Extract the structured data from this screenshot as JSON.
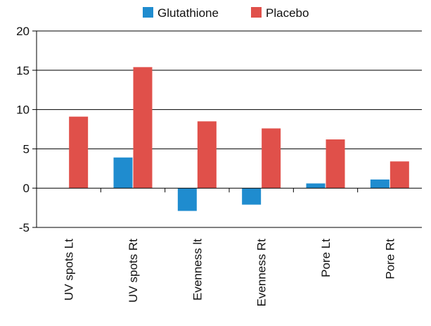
{
  "chart_data": {
    "type": "bar",
    "categories": [
      "UV spots Lt",
      "UV spots Rt",
      "Evenness lt",
      "Evenness Rt",
      "Pore Lt",
      "Pore Rt"
    ],
    "series": [
      {
        "name": "Glutathione",
        "color": "#1f8ccf",
        "values": [
          0,
          3.9,
          -2.9,
          -2.1,
          0.6,
          1.1
        ]
      },
      {
        "name": "Placebo",
        "color": "#e0504a",
        "values": [
          9.1,
          15.4,
          8.5,
          7.6,
          6.2,
          3.4
        ]
      }
    ],
    "y_ticks": [
      "20",
      "15",
      "10",
      "5",
      "0",
      "-5"
    ],
    "ylim": [
      -5,
      20
    ],
    "grid": "horizontal",
    "legend_position": "top-center"
  }
}
